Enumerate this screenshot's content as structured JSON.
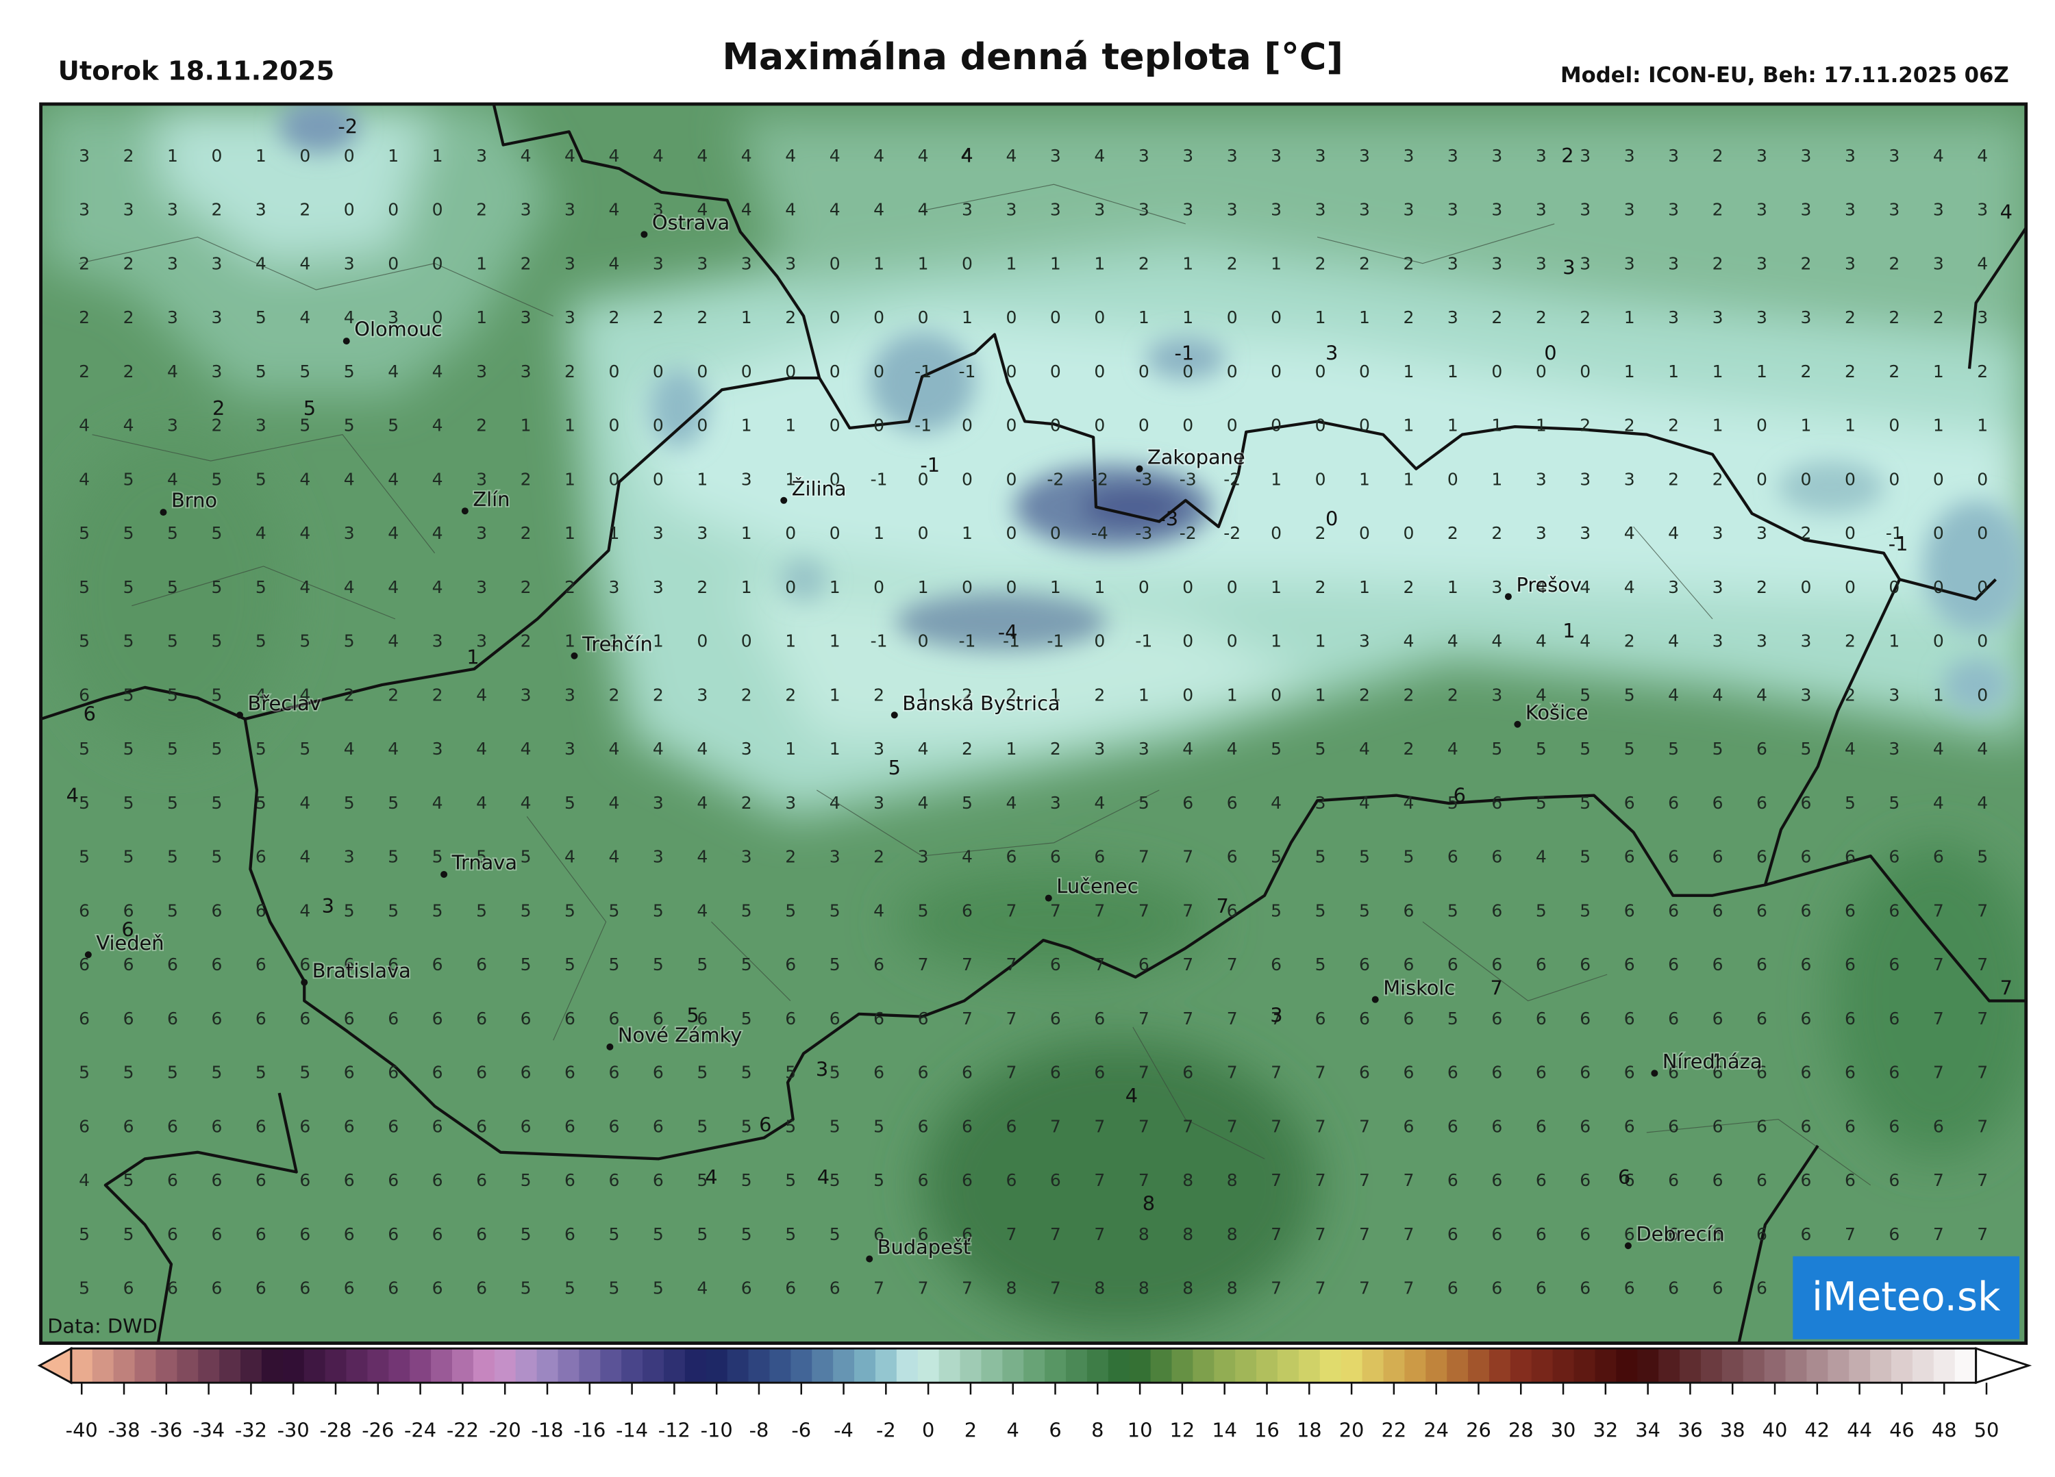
{
  "header": {
    "date": "Utorok 18.11.2025",
    "title": "Maximálna denná teplota [°C]",
    "model": "Model: ICON-EU, Beh: 17.11.2025 06Z"
  },
  "map": {
    "grid_values": [
      [
        3,
        2,
        1,
        0,
        1,
        0,
        0,
        1,
        1,
        3,
        4,
        4,
        4,
        4,
        4,
        4,
        4,
        4,
        4,
        4,
        4,
        4,
        3,
        4,
        3,
        3,
        3,
        3,
        3,
        3,
        3,
        3,
        3,
        3,
        3,
        3,
        3,
        2,
        3,
        3,
        3,
        3,
        4,
        4
      ],
      [
        3,
        3,
        3,
        2,
        3,
        2,
        0,
        0,
        0,
        2,
        3,
        3,
        4,
        3,
        4,
        4,
        4,
        4,
        4,
        4,
        3,
        3,
        3,
        3,
        3,
        3,
        3,
        3,
        3,
        3,
        3,
        3,
        3,
        3,
        3,
        3,
        3,
        2,
        3,
        3,
        3,
        3,
        3,
        3
      ],
      [
        2,
        2,
        3,
        3,
        4,
        4,
        3,
        0,
        0,
        1,
        2,
        3,
        4,
        3,
        3,
        3,
        3,
        0,
        1,
        1,
        0,
        1,
        1,
        1,
        2,
        1,
        2,
        1,
        2,
        2,
        2,
        3,
        3,
        3,
        3,
        3,
        3,
        2,
        3,
        2,
        3,
        2,
        3,
        4
      ],
      [
        2,
        2,
        3,
        3,
        5,
        4,
        4,
        3,
        0,
        1,
        3,
        3,
        2,
        2,
        2,
        1,
        2,
        0,
        0,
        0,
        1,
        0,
        0,
        0,
        1,
        1,
        0,
        0,
        1,
        1,
        2,
        3,
        2,
        2,
        2,
        1,
        3,
        3,
        3,
        3,
        2,
        2,
        2,
        3
      ],
      [
        2,
        2,
        4,
        3,
        5,
        5,
        5,
        4,
        4,
        3,
        3,
        2,
        0,
        0,
        0,
        0,
        0,
        0,
        0,
        -1,
        -1,
        0,
        0,
        0,
        0,
        0,
        0,
        0,
        0,
        0,
        1,
        1,
        0,
        0,
        0,
        1,
        1,
        1,
        1,
        2,
        2,
        2,
        1,
        2
      ],
      [
        4,
        4,
        3,
        2,
        3,
        5,
        5,
        5,
        4,
        2,
        1,
        1,
        0,
        0,
        0,
        1,
        1,
        0,
        0,
        -1,
        0,
        0,
        0,
        0,
        0,
        0,
        0,
        0,
        0,
        0,
        1,
        1,
        1,
        1,
        2,
        2,
        2,
        1,
        0,
        1,
        1,
        0,
        1,
        1
      ],
      [
        4,
        5,
        4,
        5,
        5,
        4,
        4,
        4,
        4,
        3,
        2,
        1,
        0,
        0,
        1,
        3,
        1,
        0,
        -1,
        0,
        0,
        0,
        -2,
        -2,
        -3,
        -3,
        -2,
        1,
        0,
        1,
        1,
        0,
        1,
        3,
        3,
        3,
        2,
        2,
        0,
        0,
        0,
        0,
        0,
        0
      ],
      [
        5,
        5,
        5,
        5,
        4,
        4,
        3,
        4,
        4,
        3,
        2,
        1,
        1,
        3,
        3,
        1,
        0,
        0,
        1,
        0,
        1,
        0,
        0,
        -4,
        -3,
        -2,
        -2,
        0,
        2,
        0,
        0,
        2,
        2,
        3,
        3,
        4,
        4,
        3,
        3,
        2,
        0,
        -1,
        0,
        0
      ],
      [
        5,
        5,
        5,
        5,
        5,
        4,
        4,
        4,
        4,
        3,
        2,
        2,
        3,
        3,
        2,
        1,
        0,
        1,
        0,
        1,
        0,
        0,
        1,
        1,
        0,
        0,
        0,
        1,
        2,
        1,
        2,
        1,
        3,
        4,
        4,
        4,
        3,
        3,
        2,
        0,
        0,
        0,
        0,
        0
      ],
      [
        5,
        5,
        5,
        5,
        5,
        5,
        5,
        4,
        3,
        3,
        2,
        1,
        1,
        1,
        0,
        0,
        1,
        1,
        -1,
        0,
        -1,
        -1,
        -1,
        0,
        -1,
        0,
        0,
        1,
        1,
        3,
        4,
        4,
        4,
        4,
        4,
        2,
        4,
        3,
        3,
        3,
        2,
        1,
        0,
        0
      ],
      [
        6,
        5,
        5,
        5,
        4,
        4,
        2,
        2,
        2,
        4,
        3,
        3,
        2,
        2,
        3,
        2,
        2,
        1,
        2,
        1,
        2,
        2,
        1,
        2,
        1,
        0,
        1,
        0,
        1,
        2,
        2,
        2,
        3,
        4,
        5,
        5,
        4,
        4,
        4,
        3,
        2,
        3,
        1,
        0
      ],
      [
        5,
        5,
        5,
        5,
        5,
        5,
        4,
        4,
        3,
        4,
        4,
        3,
        4,
        4,
        4,
        3,
        1,
        1,
        3,
        4,
        2,
        1,
        2,
        3,
        3,
        4,
        4,
        5,
        5,
        4,
        2,
        4,
        5,
        5,
        5,
        5,
        5,
        5,
        6,
        5,
        4,
        3,
        4,
        4
      ],
      [
        5,
        5,
        5,
        5,
        5,
        4,
        5,
        5,
        4,
        4,
        4,
        5,
        4,
        3,
        4,
        2,
        3,
        4,
        3,
        4,
        5,
        4,
        3,
        4,
        5,
        6,
        6,
        4,
        3,
        4,
        4,
        5,
        6,
        5,
        5,
        6,
        6,
        6,
        6,
        6,
        5,
        5,
        4,
        4
      ],
      [
        5,
        5,
        5,
        5,
        6,
        4,
        3,
        5,
        5,
        5,
        5,
        4,
        4,
        3,
        4,
        3,
        2,
        3,
        2,
        3,
        4,
        6,
        6,
        6,
        7,
        7,
        6,
        5,
        5,
        5,
        5,
        6,
        6,
        4,
        5,
        6,
        6,
        6,
        6,
        6,
        6,
        6,
        6,
        5
      ],
      [
        6,
        6,
        5,
        6,
        6,
        4,
        5,
        5,
        5,
        5,
        5,
        5,
        5,
        5,
        4,
        5,
        5,
        5,
        4,
        5,
        6,
        7,
        7,
        7,
        7,
        7,
        6,
        5,
        5,
        5,
        6,
        5,
        6,
        5,
        5,
        6,
        6,
        6,
        6,
        6,
        6,
        6,
        7,
        7
      ],
      [
        6,
        6,
        6,
        6,
        6,
        6,
        6,
        6,
        6,
        6,
        5,
        5,
        5,
        5,
        5,
        5,
        6,
        5,
        6,
        7,
        7,
        7,
        6,
        7,
        6,
        7,
        7,
        6,
        5,
        6,
        6,
        6,
        6,
        6,
        6,
        6,
        6,
        6,
        6,
        6,
        6,
        6,
        7,
        7
      ],
      [
        6,
        6,
        6,
        6,
        6,
        6,
        6,
        6,
        6,
        6,
        6,
        6,
        6,
        6,
        6,
        5,
        6,
        6,
        6,
        6,
        7,
        7,
        6,
        6,
        7,
        7,
        7,
        7,
        6,
        6,
        6,
        5,
        6,
        6,
        6,
        6,
        6,
        6,
        6,
        6,
        6,
        6,
        7,
        7
      ],
      [
        5,
        5,
        5,
        5,
        5,
        5,
        6,
        6,
        6,
        6,
        6,
        6,
        6,
        6,
        5,
        5,
        5,
        5,
        6,
        6,
        6,
        7,
        6,
        6,
        7,
        6,
        7,
        7,
        7,
        6,
        6,
        6,
        6,
        6,
        6,
        6,
        6,
        6,
        6,
        6,
        6,
        6,
        7,
        7
      ],
      [
        6,
        6,
        6,
        6,
        6,
        6,
        6,
        6,
        6,
        6,
        6,
        6,
        6,
        6,
        5,
        5,
        5,
        5,
        5,
        6,
        6,
        6,
        7,
        7,
        7,
        7,
        7,
        7,
        7,
        7,
        6,
        6,
        6,
        6,
        6,
        6,
        6,
        6,
        6,
        6,
        6,
        6,
        6,
        7
      ],
      [
        4,
        5,
        6,
        6,
        6,
        6,
        6,
        6,
        6,
        6,
        5,
        6,
        6,
        6,
        5,
        5,
        5,
        5,
        5,
        6,
        6,
        6,
        6,
        7,
        7,
        8,
        8,
        7,
        7,
        7,
        7,
        6,
        6,
        6,
        6,
        6,
        6,
        6,
        6,
        6,
        6,
        6,
        7,
        7
      ],
      [
        5,
        5,
        6,
        6,
        6,
        6,
        6,
        6,
        6,
        6,
        5,
        6,
        5,
        5,
        5,
        5,
        5,
        5,
        6,
        6,
        6,
        7,
        7,
        7,
        8,
        8,
        8,
        7,
        7,
        7,
        7,
        6,
        6,
        6,
        6,
        6,
        6,
        6,
        6,
        6,
        7,
        6,
        7,
        7
      ],
      [
        5,
        6,
        6,
        6,
        6,
        6,
        6,
        6,
        6,
        6,
        5,
        5,
        5,
        5,
        4,
        6,
        6,
        6,
        7,
        7,
        7,
        8,
        7,
        8,
        8,
        8,
        8,
        7,
        7,
        7,
        7,
        6,
        6,
        6,
        6,
        6,
        6,
        6,
        6
      ]
    ],
    "contour_labels": [
      -2,
      4,
      2,
      4,
      3,
      -1,
      3,
      0,
      2,
      5,
      -1,
      -3,
      0,
      -1,
      -4,
      1,
      1,
      6,
      5,
      4,
      6,
      3,
      6,
      7,
      7,
      7,
      5,
      3,
      3,
      4,
      6,
      4,
      4,
      6,
      8
    ],
    "cities": [
      "Ostrava",
      "Olomouc",
      "Brno",
      "Zlín",
      "Žilina",
      "Zakopane",
      "Trenčín",
      "Prešov",
      "Břeclav",
      "Banská Bystrica",
      "Košice",
      "Trnava",
      "Lučenec",
      "Viedeň",
      "Bratislava",
      "Miskolc",
      "Nové Zámky",
      "Níreďháza",
      "Budapešť",
      "Debrecín"
    ],
    "source": "Data: DWD",
    "logo": "iMeteo.sk"
  },
  "colorbar": {
    "ticks": [
      -40,
      -38,
      -36,
      -34,
      -32,
      -30,
      -28,
      -26,
      -24,
      -22,
      -20,
      -18,
      -16,
      -14,
      -12,
      -10,
      -8,
      -6,
      -4,
      -2,
      0,
      2,
      4,
      6,
      8,
      10,
      12,
      14,
      16,
      18,
      20,
      22,
      24,
      26,
      28,
      30,
      32,
      34,
      36,
      38,
      40,
      42,
      44,
      46,
      48,
      50
    ]
  }
}
